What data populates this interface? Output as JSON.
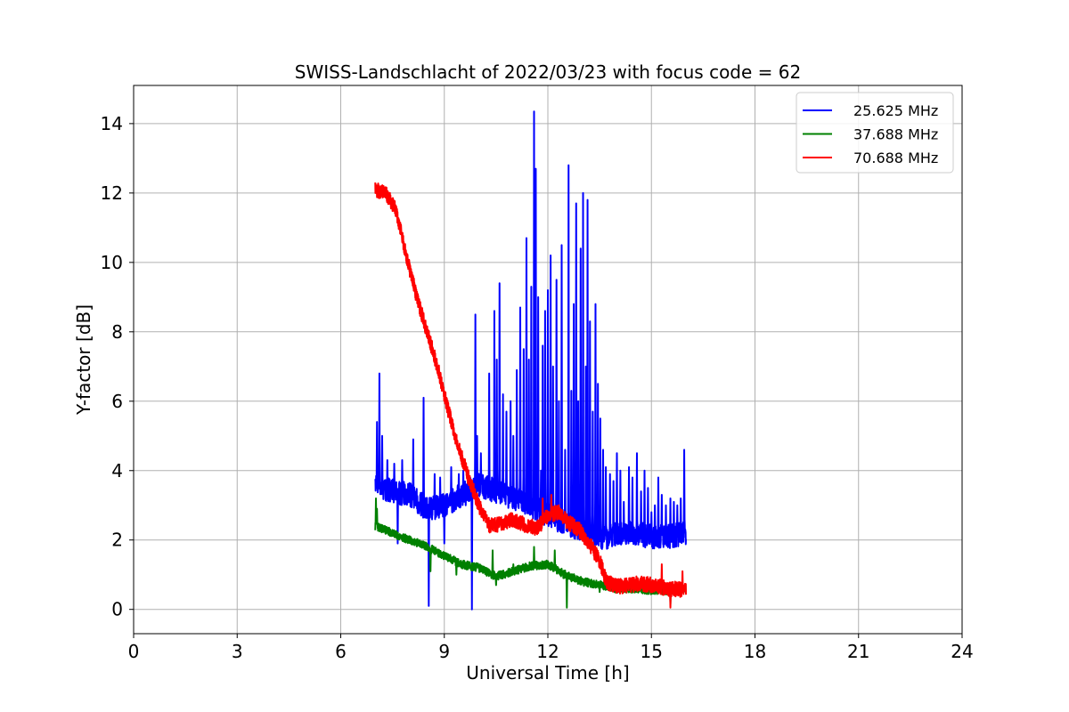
{
  "chart_data": {
    "type": "line",
    "title": "SWISS-Landschlacht of 2022/03/23 with focus code = 62",
    "xlabel": "Universal Time [h]",
    "ylabel": "Y-factor [dB]",
    "xlim": [
      0,
      24
    ],
    "ylim": [
      -0.7,
      15.1
    ],
    "xticks": [
      0,
      3,
      6,
      9,
      12,
      15,
      18,
      21,
      24
    ],
    "yticks": [
      0,
      2,
      4,
      6,
      8,
      10,
      12,
      14
    ],
    "grid": true,
    "legend_position": "top-right",
    "series": [
      {
        "name": "25.625 MHz",
        "color": "#0000ff",
        "base": [
          [
            7.0,
            3.6
          ],
          [
            7.5,
            3.4
          ],
          [
            8.0,
            3.3
          ],
          [
            8.5,
            2.9
          ],
          [
            9.0,
            3.0
          ],
          [
            9.5,
            3.3
          ],
          [
            10.0,
            3.6
          ],
          [
            10.5,
            3.4
          ],
          [
            11.0,
            3.2
          ],
          [
            11.5,
            3.0
          ],
          [
            12.0,
            2.7
          ],
          [
            12.5,
            2.5
          ],
          [
            13.0,
            2.3
          ],
          [
            13.5,
            2.0
          ],
          [
            14.0,
            2.2
          ],
          [
            14.5,
            2.2
          ],
          [
            15.0,
            2.1
          ],
          [
            15.5,
            2.1
          ],
          [
            16.0,
            2.2
          ]
        ],
        "noise": 0.35,
        "spikes": [
          [
            7.05,
            5.4
          ],
          [
            7.12,
            6.8
          ],
          [
            7.2,
            5.0
          ],
          [
            7.35,
            4.3
          ],
          [
            7.55,
            4.2
          ],
          [
            7.65,
            1.9
          ],
          [
            7.78,
            4.3
          ],
          [
            8.1,
            4.9
          ],
          [
            8.25,
            3.0
          ],
          [
            8.4,
            6.1
          ],
          [
            8.55,
            0.1
          ],
          [
            8.72,
            3.9
          ],
          [
            8.88,
            3.8
          ],
          [
            9.0,
            1.9
          ],
          [
            9.2,
            4.1
          ],
          [
            9.42,
            3.9
          ],
          [
            9.55,
            4.0
          ],
          [
            9.62,
            3.0
          ],
          [
            9.8,
            0.0
          ],
          [
            9.9,
            8.5
          ],
          [
            9.95,
            5.0
          ],
          [
            10.06,
            4.5
          ],
          [
            10.15,
            3.2
          ],
          [
            10.3,
            6.8
          ],
          [
            10.38,
            3.8
          ],
          [
            10.45,
            8.6
          ],
          [
            10.52,
            7.2
          ],
          [
            10.6,
            9.4
          ],
          [
            10.7,
            6.2
          ],
          [
            10.8,
            5.7
          ],
          [
            10.92,
            6.0
          ],
          [
            11.0,
            5.0
          ],
          [
            11.1,
            6.9
          ],
          [
            11.2,
            8.7
          ],
          [
            11.3,
            7.5
          ],
          [
            11.38,
            10.7
          ],
          [
            11.45,
            7.2
          ],
          [
            11.52,
            9.3
          ],
          [
            11.6,
            14.35
          ],
          [
            11.65,
            12.7
          ],
          [
            11.72,
            9.0
          ],
          [
            11.8,
            4.0
          ],
          [
            11.85,
            7.6
          ],
          [
            11.92,
            8.6
          ],
          [
            12.0,
            9.2
          ],
          [
            12.08,
            10.2
          ],
          [
            12.15,
            7.0
          ],
          [
            12.25,
            9.5
          ],
          [
            12.32,
            6.0
          ],
          [
            12.4,
            10.5
          ],
          [
            12.5,
            4.6
          ],
          [
            12.6,
            12.8
          ],
          [
            12.68,
            6.3
          ],
          [
            12.75,
            8.8
          ],
          [
            12.82,
            11.7
          ],
          [
            12.88,
            6.0
          ],
          [
            12.95,
            10.4
          ],
          [
            13.02,
            12.0
          ],
          [
            13.1,
            7.0
          ],
          [
            13.15,
            11.8
          ],
          [
            13.22,
            8.3
          ],
          [
            13.3,
            5.7
          ],
          [
            13.38,
            8.8
          ],
          [
            13.45,
            6.5
          ],
          [
            13.52,
            5.5
          ],
          [
            13.6,
            4.6
          ],
          [
            13.68,
            4.1
          ],
          [
            13.8,
            3.9
          ],
          [
            13.9,
            3.7
          ],
          [
            14.0,
            4.5
          ],
          [
            14.1,
            4.0
          ],
          [
            14.2,
            3.1
          ],
          [
            14.35,
            4.1
          ],
          [
            14.45,
            3.8
          ],
          [
            14.58,
            4.5
          ],
          [
            14.7,
            3.4
          ],
          [
            14.8,
            4.0
          ],
          [
            14.9,
            3.5
          ],
          [
            15.0,
            2.8
          ],
          [
            15.1,
            3.0
          ],
          [
            15.2,
            3.8
          ],
          [
            15.3,
            3.3
          ],
          [
            15.42,
            3.0
          ],
          [
            15.55,
            3.2
          ],
          [
            15.65,
            3.1
          ],
          [
            15.75,
            3.0
          ],
          [
            15.85,
            3.2
          ],
          [
            15.95,
            4.6
          ],
          [
            15.98,
            2.3
          ]
        ]
      },
      {
        "name": "37.688 MHz",
        "color": "#008000",
        "base": [
          [
            7.0,
            2.4
          ],
          [
            7.5,
            2.2
          ],
          [
            8.0,
            2.0
          ],
          [
            8.5,
            1.8
          ],
          [
            9.0,
            1.55
          ],
          [
            9.5,
            1.3
          ],
          [
            10.0,
            1.2
          ],
          [
            10.5,
            0.95
          ],
          [
            11.0,
            1.1
          ],
          [
            11.5,
            1.25
          ],
          [
            12.0,
            1.3
          ],
          [
            12.5,
            1.0
          ],
          [
            13.0,
            0.8
          ],
          [
            13.5,
            0.7
          ],
          [
            14.0,
            0.6
          ],
          [
            14.5,
            0.6
          ],
          [
            15.0,
            0.55
          ],
          [
            15.5,
            0.55
          ],
          [
            16.0,
            0.6
          ]
        ],
        "noise": 0.12,
        "spikes": [
          [
            7.02,
            3.2
          ],
          [
            7.05,
            2.9
          ],
          [
            8.6,
            1.1
          ],
          [
            9.35,
            1.0
          ],
          [
            9.75,
            1.2
          ],
          [
            10.4,
            1.7
          ],
          [
            10.5,
            0.7
          ],
          [
            11.0,
            1.3
          ],
          [
            11.6,
            1.8
          ],
          [
            12.2,
            1.7
          ],
          [
            12.45,
            0.9
          ],
          [
            12.55,
            0.05
          ],
          [
            13.5,
            0.5
          ],
          [
            14.6,
            0.9
          ],
          [
            15.2,
            0.5
          ],
          [
            15.55,
            0.15
          ],
          [
            15.9,
            0.7
          ]
        ]
      },
      {
        "name": "70.688 MHz",
        "color": "#ff0000",
        "base": [
          [
            7.0,
            12.1
          ],
          [
            7.3,
            12.0
          ],
          [
            7.6,
            11.5
          ],
          [
            7.9,
            10.2
          ],
          [
            8.2,
            9.0
          ],
          [
            8.5,
            8.0
          ],
          [
            8.8,
            7.0
          ],
          [
            9.1,
            5.8
          ],
          [
            9.4,
            4.7
          ],
          [
            9.7,
            3.8
          ],
          [
            10.0,
            3.0
          ],
          [
            10.3,
            2.4
          ],
          [
            10.6,
            2.45
          ],
          [
            11.0,
            2.6
          ],
          [
            11.4,
            2.4
          ],
          [
            11.7,
            2.35
          ],
          [
            12.0,
            2.7
          ],
          [
            12.3,
            2.8
          ],
          [
            12.6,
            2.5
          ],
          [
            12.9,
            2.3
          ],
          [
            13.2,
            1.9
          ],
          [
            13.5,
            1.4
          ],
          [
            13.7,
            0.8
          ],
          [
            14.0,
            0.65
          ],
          [
            14.3,
            0.7
          ],
          [
            14.7,
            0.75
          ],
          [
            15.0,
            0.7
          ],
          [
            15.5,
            0.6
          ],
          [
            16.0,
            0.55
          ]
        ],
        "noise": 0.22,
        "spikes": [
          [
            11.85,
            3.2
          ],
          [
            12.1,
            3.3
          ],
          [
            15.3,
            1.3
          ],
          [
            15.55,
            0.05
          ],
          [
            15.9,
            1.1
          ]
        ]
      }
    ]
  }
}
